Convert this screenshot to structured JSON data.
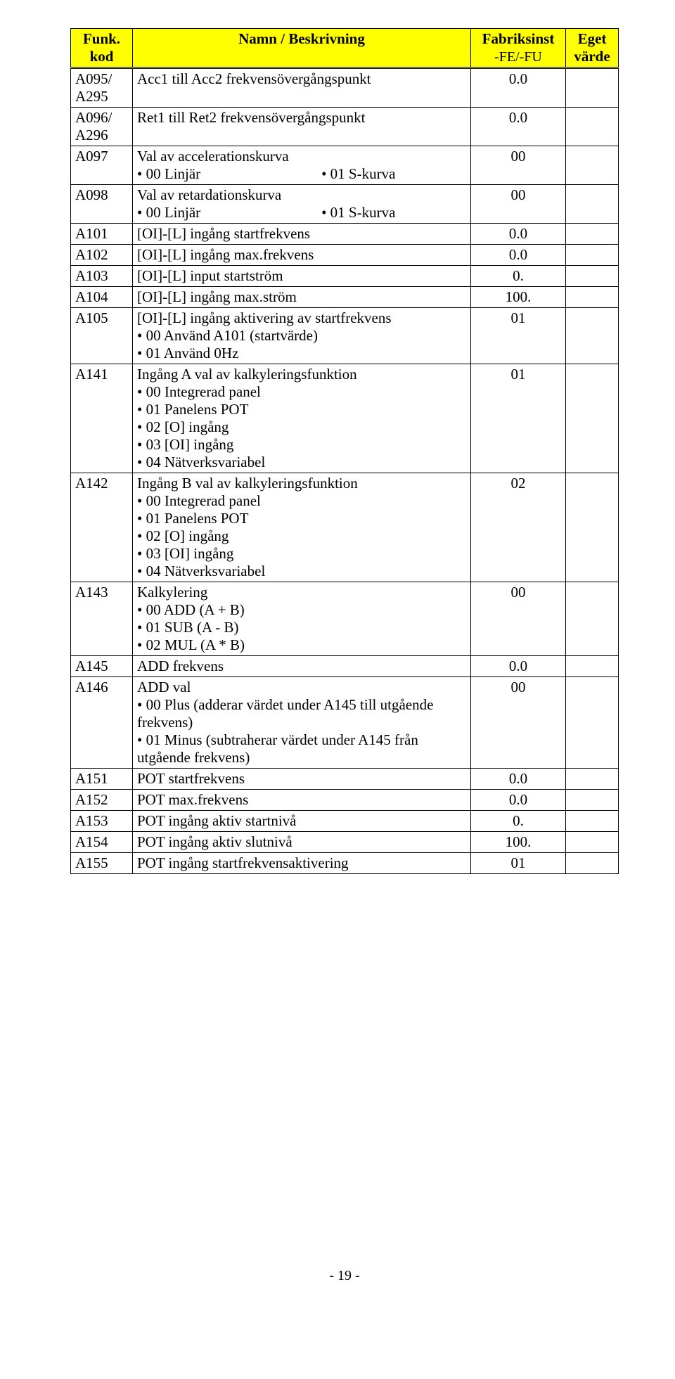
{
  "headers": {
    "col1_line1": "Funk.",
    "col1_line2": "kod",
    "col2": "Namn / Beskrivning",
    "col3_line1": "Fabriksinst",
    "col3_line2": "-FE/-FU",
    "col4_line1": "Eget",
    "col4_line2": "värde"
  },
  "rows": [
    {
      "code": "A095/\nA295",
      "desc": "Acc1 till Acc2 frekvensövergångspunkt",
      "bullets": [],
      "twocol": null,
      "factory": "0.0"
    },
    {
      "code": "A096/\nA296",
      "desc": "Ret1 till Ret2 frekvensövergångspunkt",
      "bullets": [],
      "twocol": null,
      "factory": "0.0"
    },
    {
      "code": "A097",
      "desc": "Val av accelerationskurva",
      "bullets": [],
      "twocol": {
        "left": "• 00 Linjär",
        "right": "• 01 S-kurva"
      },
      "factory": "00"
    },
    {
      "code": "A098",
      "desc": "Val av retardationskurva",
      "bullets": [],
      "twocol": {
        "left": "• 00 Linjär",
        "right": "• 01 S-kurva"
      },
      "factory": "00"
    },
    {
      "code": "A101",
      "desc": "[OI]-[L] ingång startfrekvens",
      "bullets": [],
      "twocol": null,
      "factory": "0.0"
    },
    {
      "code": "A102",
      "desc": "[OI]-[L] ingång max.frekvens",
      "bullets": [],
      "twocol": null,
      "factory": "0.0"
    },
    {
      "code": "A103",
      "desc": "[OI]-[L] input startström",
      "bullets": [],
      "twocol": null,
      "factory": "0."
    },
    {
      "code": "A104",
      "desc": "[OI]-[L] ingång max.ström",
      "bullets": [],
      "twocol": null,
      "factory": "100."
    },
    {
      "code": "A105",
      "desc": "[OI]-[L] ingång aktivering av startfrekvens",
      "bullets": [
        "• 00 Använd A101 (startvärde)",
        "• 01 Använd 0Hz"
      ],
      "twocol": null,
      "factory": "01"
    },
    {
      "code": "A141",
      "desc": "Ingång A val av kalkyleringsfunktion",
      "bullets": [
        "• 00 Integrerad panel",
        "• 01 Panelens POT",
        "• 02 [O] ingång",
        "• 03 [OI] ingång",
        "• 04 Nätverksvariabel"
      ],
      "twocol": null,
      "factory": "01"
    },
    {
      "code": "A142",
      "desc": "Ingång B val av kalkyleringsfunktion",
      "bullets": [
        "• 00 Integrerad panel",
        "• 01 Panelens POT",
        "• 02 [O] ingång",
        "• 03 [OI] ingång",
        "• 04 Nätverksvariabel"
      ],
      "twocol": null,
      "factory": "02"
    },
    {
      "code": "A143",
      "desc": "Kalkylering",
      "bullets": [
        "• 00 ADD (A + B)",
        "• 01 SUB (A - B)",
        "• 02 MUL (A * B)"
      ],
      "twocol": null,
      "factory": "00"
    },
    {
      "code": "A145",
      "desc": "ADD frekvens",
      "bullets": [],
      "twocol": null,
      "factory": "0.0"
    },
    {
      "code": "A146",
      "desc": "ADD val",
      "bullets": [
        "• 00 Plus (adderar värdet under A145 till utgående frekvens)",
        "• 01 Minus (subtraherar värdet under A145 från utgående frekvens)"
      ],
      "twocol": null,
      "factory": "00"
    },
    {
      "code": "A151",
      "desc": "POT startfrekvens",
      "bullets": [],
      "twocol": null,
      "factory": "0.0"
    },
    {
      "code": "A152",
      "desc": "POT max.frekvens",
      "bullets": [],
      "twocol": null,
      "factory": "0.0"
    },
    {
      "code": "A153",
      "desc": "POT ingång aktiv startnivå",
      "bullets": [],
      "twocol": null,
      "factory": "0."
    },
    {
      "code": "A154",
      "desc": "POT ingång aktiv slutnivå",
      "bullets": [],
      "twocol": null,
      "factory": "100."
    },
    {
      "code": "A155",
      "desc": "POT ingång startfrekvensaktivering",
      "bullets": [],
      "twocol": null,
      "factory": "01"
    }
  ],
  "page_number": "- 19 -",
  "colors": {
    "header_bg": "#ffff00",
    "border": "#000000",
    "text": "#000000",
    "page_bg": "#ffffff"
  }
}
